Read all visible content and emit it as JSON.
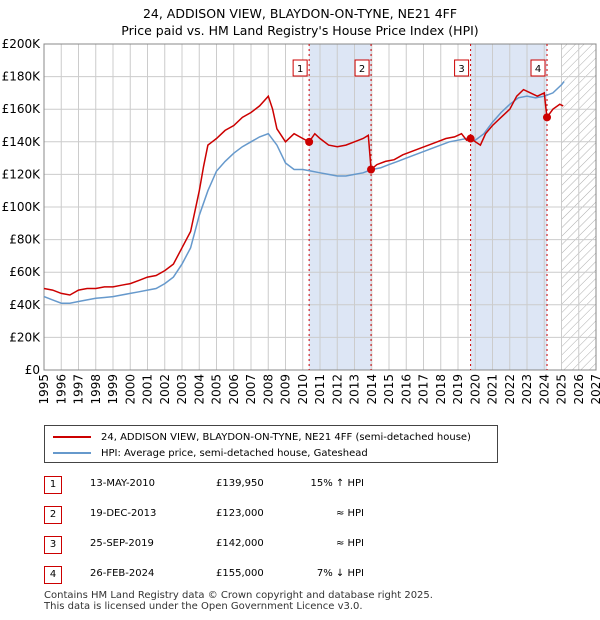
{
  "title_line1": "24, ADDISON VIEW, BLAYDON-ON-TYNE, NE21 4FF",
  "title_line2": "Price paid vs. HM Land Registry's House Price Index (HPI)",
  "colors": {
    "property": "#cc0000",
    "hpi": "#6699cc",
    "grid": "#cccccc",
    "shade": "#dde6f5"
  },
  "chart_data": {
    "type": "line",
    "xlim": [
      1995,
      2027
    ],
    "ylim": [
      0,
      200000
    ],
    "x_ticks": [
      "1995",
      "1996",
      "1997",
      "1998",
      "1999",
      "2000",
      "2001",
      "2002",
      "2003",
      "2004",
      "2005",
      "2006",
      "2007",
      "2008",
      "2009",
      "2010",
      "2011",
      "2012",
      "2013",
      "2014",
      "2015",
      "2016",
      "2017",
      "2018",
      "2019",
      "2020",
      "2021",
      "2022",
      "2023",
      "2024",
      "2025",
      "2026",
      "2027"
    ],
    "y_ticks": [
      {
        "value": 0,
        "label": "£0"
      },
      {
        "value": 20000,
        "label": "£20K"
      },
      {
        "value": 40000,
        "label": "£40K"
      },
      {
        "value": 60000,
        "label": "£60K"
      },
      {
        "value": 80000,
        "label": "£80K"
      },
      {
        "value": 100000,
        "label": "£100K"
      },
      {
        "value": 120000,
        "label": "£120K"
      },
      {
        "value": 140000,
        "label": "£140K"
      },
      {
        "value": 160000,
        "label": "£160K"
      },
      {
        "value": 180000,
        "label": "£180K"
      },
      {
        "value": 200000,
        "label": "£200K"
      }
    ],
    "future_hatch_from": 2025.0,
    "series": [
      {
        "name": "24, ADDISON VIEW, BLAYDON-ON-TYNE, NE21 4FF (semi-detached house)",
        "color": "#cc0000",
        "points": [
          [
            1995.0,
            50000
          ],
          [
            1995.5,
            49000
          ],
          [
            1996.0,
            47000
          ],
          [
            1996.5,
            46000
          ],
          [
            1997.0,
            49000
          ],
          [
            1997.5,
            50000
          ],
          [
            1998.0,
            50000
          ],
          [
            1998.5,
            51000
          ],
          [
            1999.0,
            51000
          ],
          [
            1999.5,
            52000
          ],
          [
            2000.0,
            53000
          ],
          [
            2000.5,
            55000
          ],
          [
            2001.0,
            57000
          ],
          [
            2001.5,
            58000
          ],
          [
            2002.0,
            61000
          ],
          [
            2002.5,
            65000
          ],
          [
            2003.0,
            75000
          ],
          [
            2003.5,
            85000
          ],
          [
            2004.0,
            110000
          ],
          [
            2004.25,
            125000
          ],
          [
            2004.5,
            138000
          ],
          [
            2004.75,
            140000
          ],
          [
            2005.0,
            142000
          ],
          [
            2005.5,
            147000
          ],
          [
            2006.0,
            150000
          ],
          [
            2006.5,
            155000
          ],
          [
            2007.0,
            158000
          ],
          [
            2007.5,
            162000
          ],
          [
            2008.0,
            168000
          ],
          [
            2008.25,
            160000
          ],
          [
            2008.5,
            148000
          ],
          [
            2009.0,
            140000
          ],
          [
            2009.5,
            145000
          ],
          [
            2010.0,
            142000
          ],
          [
            2010.37,
            139950
          ],
          [
            2010.7,
            145000
          ],
          [
            2011.0,
            142000
          ],
          [
            2011.5,
            138000
          ],
          [
            2012.0,
            137000
          ],
          [
            2012.5,
            138000
          ],
          [
            2013.0,
            140000
          ],
          [
            2013.5,
            142000
          ],
          [
            2013.8,
            144000
          ],
          [
            2013.96,
            123000
          ],
          [
            2014.3,
            126000
          ],
          [
            2014.8,
            128000
          ],
          [
            2015.3,
            129000
          ],
          [
            2015.8,
            132000
          ],
          [
            2016.3,
            134000
          ],
          [
            2016.8,
            136000
          ],
          [
            2017.3,
            138000
          ],
          [
            2017.8,
            140000
          ],
          [
            2018.3,
            142000
          ],
          [
            2018.8,
            143000
          ],
          [
            2019.2,
            145000
          ],
          [
            2019.5,
            141000
          ],
          [
            2019.73,
            142000
          ],
          [
            2020.0,
            140000
          ],
          [
            2020.3,
            138000
          ],
          [
            2020.6,
            145000
          ],
          [
            2021.0,
            150000
          ],
          [
            2021.5,
            155000
          ],
          [
            2022.0,
            160000
          ],
          [
            2022.4,
            168000
          ],
          [
            2022.8,
            172000
          ],
          [
            2023.2,
            170000
          ],
          [
            2023.6,
            168000
          ],
          [
            2024.0,
            170000
          ],
          [
            2024.1,
            160000
          ],
          [
            2024.16,
            155000
          ],
          [
            2024.5,
            160000
          ],
          [
            2024.9,
            163000
          ],
          [
            2025.1,
            162000
          ]
        ]
      },
      {
        "name": "HPI: Average price, semi-detached house, Gateshead",
        "color": "#6699cc",
        "points": [
          [
            1995.0,
            45000
          ],
          [
            1995.5,
            43000
          ],
          [
            1996.0,
            41000
          ],
          [
            1996.5,
            41000
          ],
          [
            1997.0,
            42000
          ],
          [
            1997.5,
            43000
          ],
          [
            1998.0,
            44000
          ],
          [
            1998.5,
            44500
          ],
          [
            1999.0,
            45000
          ],
          [
            1999.5,
            46000
          ],
          [
            2000.0,
            47000
          ],
          [
            2000.5,
            48000
          ],
          [
            2001.0,
            49000
          ],
          [
            2001.5,
            50000
          ],
          [
            2002.0,
            53000
          ],
          [
            2002.5,
            57000
          ],
          [
            2003.0,
            65000
          ],
          [
            2003.5,
            75000
          ],
          [
            2004.0,
            95000
          ],
          [
            2004.5,
            110000
          ],
          [
            2005.0,
            122000
          ],
          [
            2005.5,
            128000
          ],
          [
            2006.0,
            133000
          ],
          [
            2006.5,
            137000
          ],
          [
            2007.0,
            140000
          ],
          [
            2007.5,
            143000
          ],
          [
            2008.0,
            145000
          ],
          [
            2008.5,
            138000
          ],
          [
            2009.0,
            127000
          ],
          [
            2009.5,
            123000
          ],
          [
            2010.0,
            123000
          ],
          [
            2010.5,
            122000
          ],
          [
            2011.0,
            121000
          ],
          [
            2011.5,
            120000
          ],
          [
            2012.0,
            119000
          ],
          [
            2012.5,
            119000
          ],
          [
            2013.0,
            120000
          ],
          [
            2013.5,
            121000
          ],
          [
            2014.0,
            123000
          ],
          [
            2014.5,
            124000
          ],
          [
            2015.0,
            126000
          ],
          [
            2015.5,
            128000
          ],
          [
            2016.0,
            130000
          ],
          [
            2016.5,
            132000
          ],
          [
            2017.0,
            134000
          ],
          [
            2017.5,
            136000
          ],
          [
            2018.0,
            138000
          ],
          [
            2018.5,
            140000
          ],
          [
            2019.0,
            141000
          ],
          [
            2019.5,
            142000
          ],
          [
            2020.0,
            141000
          ],
          [
            2020.5,
            145000
          ],
          [
            2021.0,
            152000
          ],
          [
            2021.5,
            158000
          ],
          [
            2022.0,
            163000
          ],
          [
            2022.5,
            167000
          ],
          [
            2023.0,
            168000
          ],
          [
            2023.5,
            167000
          ],
          [
            2024.0,
            168000
          ],
          [
            2024.5,
            170000
          ],
          [
            2025.0,
            175000
          ],
          [
            2025.15,
            177000
          ]
        ]
      }
    ],
    "sales": [
      {
        "num": "1",
        "x": 2010.37,
        "price": 139950,
        "date": "13-MAY-2010",
        "price_label": "£139,950",
        "hpi": "15% ↑ HPI"
      },
      {
        "num": "2",
        "x": 2013.96,
        "price": 123000,
        "date": "19-DEC-2013",
        "price_label": "£123,000",
        "hpi": "≈ HPI"
      },
      {
        "num": "3",
        "x": 2019.73,
        "price": 142000,
        "date": "25-SEP-2019",
        "price_label": "£142,000",
        "hpi": "≈ HPI"
      },
      {
        "num": "4",
        "x": 2024.16,
        "price": 155000,
        "date": "26-FEB-2024",
        "price_label": "£155,000",
        "hpi": "7% ↓ HPI"
      }
    ],
    "shaded_spans": [
      [
        2010.37,
        2013.96
      ],
      [
        2019.73,
        2024.16
      ]
    ]
  },
  "legend": {
    "property_label": "24, ADDISON VIEW, BLAYDON-ON-TYNE, NE21 4FF (semi-detached house)",
    "hpi_label": "HPI: Average price, semi-detached house, Gateshead"
  },
  "footer_line1": "Contains HM Land Registry data © Crown copyright and database right 2025.",
  "footer_line2": "This data is licensed under the Open Government Licence v3.0."
}
